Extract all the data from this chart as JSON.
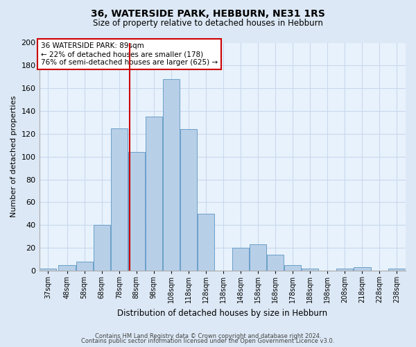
{
  "title": "36, WATERSIDE PARK, HEBBURN, NE31 1RS",
  "subtitle": "Size of property relative to detached houses in Hebburn",
  "xlabel": "Distribution of detached houses by size in Hebburn",
  "ylabel": "Number of detached properties",
  "bin_labels": [
    "37sqm",
    "48sqm",
    "58sqm",
    "68sqm",
    "78sqm",
    "88sqm",
    "98sqm",
    "108sqm",
    "118sqm",
    "128sqm",
    "138sqm",
    "148sqm",
    "158sqm",
    "168sqm",
    "178sqm",
    "188sqm",
    "198sqm",
    "208sqm",
    "218sqm",
    "228sqm",
    "238sqm"
  ],
  "bin_left_edges": [
    37,
    48,
    58,
    68,
    78,
    88,
    98,
    108,
    118,
    128,
    138,
    148,
    158,
    168,
    178,
    188,
    198,
    208,
    218,
    228,
    238
  ],
  "bin_width": 10,
  "bar_heights": [
    2,
    5,
    8,
    40,
    125,
    104,
    135,
    168,
    124,
    50,
    0,
    20,
    23,
    14,
    5,
    2,
    0,
    2,
    3,
    0,
    2
  ],
  "bar_color": "#b8cfe8",
  "bar_edge_color": "#6a9fc8",
  "vline_x": 89,
  "vline_color": "#cc0000",
  "annotation_text": "36 WATERSIDE PARK: 89sqm\n← 22% of detached houses are smaller (178)\n76% of semi-detached houses are larger (625) →",
  "annotation_box_facecolor": "#ffffff",
  "annotation_box_edgecolor": "#cc0000",
  "ylim": [
    0,
    200
  ],
  "yticks": [
    0,
    20,
    40,
    60,
    80,
    100,
    120,
    140,
    160,
    180,
    200
  ],
  "footer1": "Contains HM Land Registry data © Crown copyright and database right 2024.",
  "footer2": "Contains public sector information licensed under the Open Government Licence v3.0.",
  "fig_bg_color": "#dce8f5",
  "plot_bg_color": "#e8f2fc",
  "grid_color": "#c8d8ec"
}
